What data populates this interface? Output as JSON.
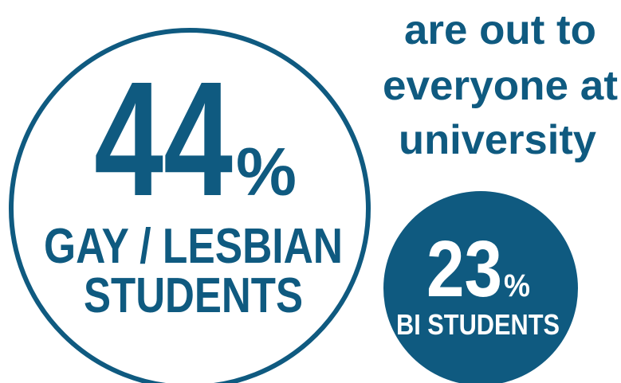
{
  "headline": [
    "are out to",
    "everyone at",
    "university"
  ],
  "stats": [
    {
      "value": "44",
      "unit": "%",
      "label": [
        "GAY / LESBIAN",
        "STUDENTS"
      ]
    },
    {
      "value": "23",
      "unit": "%",
      "label": [
        "BI STUDENTS"
      ]
    }
  ]
}
